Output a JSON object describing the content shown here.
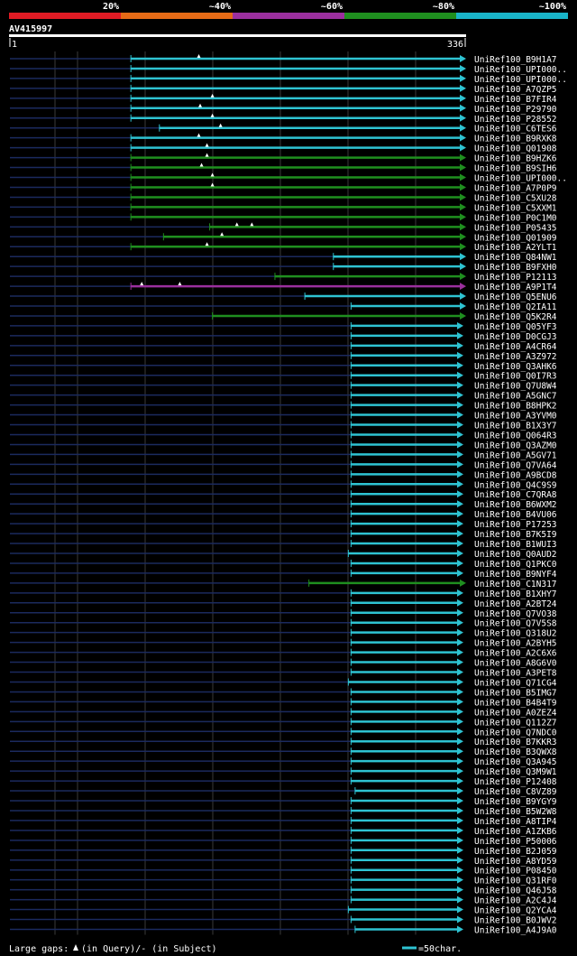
{
  "chart_data": {
    "type": "alignment-overview",
    "query": {
      "name": "AV415997",
      "start": 1,
      "end": 336
    },
    "identity_legend": [
      {
        "label": "20%",
        "color": "#e01b24"
      },
      {
        "label": "~40%",
        "color": "#e66b16"
      },
      {
        "label": "~60%",
        "color": "#9b2f9e"
      },
      {
        "label": "~80%",
        "color": "#1f8f1f"
      },
      {
        "label": "~100%",
        "color": "#19b4c8"
      }
    ],
    "footer": {
      "gaps_label": "Large gaps:",
      "query_label": "(in Query)/- (in Subject)",
      "scale_label": "=50char."
    },
    "hits": [
      {
        "name": "UniRef100_B9H1A7",
        "start": 90,
        "end": 336,
        "color": "cyan",
        "gaps": [
          140
        ]
      },
      {
        "name": "UniRef100_UPI000..",
        "start": 90,
        "end": 336,
        "color": "cyan",
        "gaps": []
      },
      {
        "name": "UniRef100_UPI000..",
        "start": 90,
        "end": 336,
        "color": "cyan",
        "gaps": []
      },
      {
        "name": "UniRef100_A7QZP5",
        "start": 90,
        "end": 336,
        "color": "cyan",
        "gaps": []
      },
      {
        "name": "UniRef100_B7FIR4",
        "start": 90,
        "end": 336,
        "color": "cyan",
        "gaps": [
          150
        ]
      },
      {
        "name": "UniRef100_P29790",
        "start": 90,
        "end": 336,
        "color": "cyan",
        "gaps": [
          141
        ]
      },
      {
        "name": "UniRef100_P28552",
        "start": 90,
        "end": 336,
        "color": "cyan",
        "gaps": [
          150
        ]
      },
      {
        "name": "UniRef100_C6TES6",
        "start": 111,
        "end": 336,
        "color": "cyan",
        "gaps": [
          156
        ]
      },
      {
        "name": "UniRef100_B9RXK8",
        "start": 90,
        "end": 336,
        "color": "cyan",
        "gaps": [
          140
        ]
      },
      {
        "name": "UniRef100_Q01908",
        "start": 90,
        "end": 336,
        "color": "cyan",
        "gaps": [
          146
        ]
      },
      {
        "name": "UniRef100_B9HZK6",
        "start": 90,
        "end": 336,
        "color": "green",
        "gaps": [
          146
        ]
      },
      {
        "name": "UniRef100_B9SIH6",
        "start": 90,
        "end": 336,
        "color": "green",
        "gaps": [
          142
        ]
      },
      {
        "name": "UniRef100_UPI000..",
        "start": 90,
        "end": 336,
        "color": "green",
        "gaps": [
          150
        ]
      },
      {
        "name": "UniRef100_A7P0P9",
        "start": 90,
        "end": 336,
        "color": "green",
        "gaps": [
          150
        ]
      },
      {
        "name": "UniRef100_C5XU28",
        "start": 90,
        "end": 336,
        "color": "green",
        "gaps": []
      },
      {
        "name": "UniRef100_C5XXM1",
        "start": 90,
        "end": 336,
        "color": "green",
        "gaps": []
      },
      {
        "name": "UniRef100_P0C1M0",
        "start": 90,
        "end": 336,
        "color": "green",
        "gaps": []
      },
      {
        "name": "UniRef100_P05435",
        "start": 148,
        "end": 336,
        "color": "green",
        "gaps": [
          168,
          179
        ]
      },
      {
        "name": "UniRef100_Q01909",
        "start": 114,
        "end": 336,
        "color": "green",
        "gaps": [
          157
        ]
      },
      {
        "name": "UniRef100_A2YLT1",
        "start": 90,
        "end": 336,
        "color": "green",
        "gaps": [
          146
        ]
      },
      {
        "name": "UniRef100_Q84NW1",
        "start": 239,
        "end": 336,
        "color": "cyan",
        "gaps": []
      },
      {
        "name": "UniRef100_B9FXH0",
        "start": 239,
        "end": 336,
        "color": "cyan",
        "gaps": []
      },
      {
        "name": "UniRef100_P12113",
        "start": 196,
        "end": 336,
        "color": "green",
        "gaps": []
      },
      {
        "name": "UniRef100_A9P1T4",
        "start": 90,
        "end": 336,
        "color": "purple",
        "gaps": [
          98,
          126
        ]
      },
      {
        "name": "UniRef100_Q5ENU6",
        "start": 218,
        "end": 336,
        "color": "cyan",
        "gaps": []
      },
      {
        "name": "UniRef100_Q2IA11",
        "start": 252,
        "end": 336,
        "color": "cyan",
        "gaps": []
      },
      {
        "name": "UniRef100_Q5K2R4",
        "start": 150,
        "end": 336,
        "color": "green",
        "gaps": []
      },
      {
        "name": "UniRef100_Q05YF3",
        "start": 252,
        "end": 334,
        "color": "cyan",
        "gaps": []
      },
      {
        "name": "UniRef100_D0CGJ3",
        "start": 252,
        "end": 334,
        "color": "cyan",
        "gaps": []
      },
      {
        "name": "UniRef100_A4CR64",
        "start": 252,
        "end": 334,
        "color": "cyan",
        "gaps": []
      },
      {
        "name": "UniRef100_A3Z972",
        "start": 252,
        "end": 334,
        "color": "cyan",
        "gaps": []
      },
      {
        "name": "UniRef100_Q3AHK6",
        "start": 252,
        "end": 334,
        "color": "cyan",
        "gaps": []
      },
      {
        "name": "UniRef100_Q0I7R3",
        "start": 252,
        "end": 334,
        "color": "cyan",
        "gaps": []
      },
      {
        "name": "UniRef100_Q7U8W4",
        "start": 252,
        "end": 334,
        "color": "cyan",
        "gaps": []
      },
      {
        "name": "UniRef100_A5GNC7",
        "start": 252,
        "end": 334,
        "color": "cyan",
        "gaps": []
      },
      {
        "name": "UniRef100_B8HPK2",
        "start": 252,
        "end": 334,
        "color": "cyan",
        "gaps": []
      },
      {
        "name": "UniRef100_A3YVM0",
        "start": 252,
        "end": 334,
        "color": "cyan",
        "gaps": []
      },
      {
        "name": "UniRef100_B1X3Y7",
        "start": 252,
        "end": 334,
        "color": "cyan",
        "gaps": []
      },
      {
        "name": "UniRef100_Q064R3",
        "start": 252,
        "end": 334,
        "color": "cyan",
        "gaps": []
      },
      {
        "name": "UniRef100_Q3AZM0",
        "start": 252,
        "end": 334,
        "color": "cyan",
        "gaps": []
      },
      {
        "name": "UniRef100_A5GV71",
        "start": 252,
        "end": 334,
        "color": "cyan",
        "gaps": []
      },
      {
        "name": "UniRef100_Q7VA64",
        "start": 252,
        "end": 334,
        "color": "cyan",
        "gaps": []
      },
      {
        "name": "UniRef100_A9BCD8",
        "start": 252,
        "end": 334,
        "color": "cyan",
        "gaps": []
      },
      {
        "name": "UniRef100_Q4C9S9",
        "start": 252,
        "end": 334,
        "color": "cyan",
        "gaps": []
      },
      {
        "name": "UniRef100_C7QRA8",
        "start": 252,
        "end": 334,
        "color": "cyan",
        "gaps": []
      },
      {
        "name": "UniRef100_B6WXM2",
        "start": 252,
        "end": 334,
        "color": "cyan",
        "gaps": []
      },
      {
        "name": "UniRef100_B4VU06",
        "start": 252,
        "end": 334,
        "color": "cyan",
        "gaps": []
      },
      {
        "name": "UniRef100_P17253",
        "start": 252,
        "end": 334,
        "color": "cyan",
        "gaps": []
      },
      {
        "name": "UniRef100_B7K5I9",
        "start": 252,
        "end": 334,
        "color": "cyan",
        "gaps": []
      },
      {
        "name": "UniRef100_B1WUI3",
        "start": 252,
        "end": 334,
        "color": "cyan",
        "gaps": []
      },
      {
        "name": "UniRef100_Q0AUD2",
        "start": 250,
        "end": 334,
        "color": "cyan",
        "gaps": []
      },
      {
        "name": "UniRef100_Q1PKC0",
        "start": 252,
        "end": 334,
        "color": "cyan",
        "gaps": []
      },
      {
        "name": "UniRef100_B9NYF4",
        "start": 252,
        "end": 334,
        "color": "cyan",
        "gaps": []
      },
      {
        "name": "UniRef100_C1N317",
        "start": 221,
        "end": 336,
        "color": "green",
        "gaps": []
      },
      {
        "name": "UniRef100_B1XHY7",
        "start": 252,
        "end": 334,
        "color": "cyan",
        "gaps": []
      },
      {
        "name": "UniRef100_A2BT24",
        "start": 252,
        "end": 334,
        "color": "cyan",
        "gaps": []
      },
      {
        "name": "UniRef100_Q7VO38",
        "start": 252,
        "end": 334,
        "color": "cyan",
        "gaps": []
      },
      {
        "name": "UniRef100_Q7V5S8",
        "start": 252,
        "end": 334,
        "color": "cyan",
        "gaps": []
      },
      {
        "name": "UniRef100_Q318U2",
        "start": 252,
        "end": 334,
        "color": "cyan",
        "gaps": []
      },
      {
        "name": "UniRef100_A2BYH5",
        "start": 252,
        "end": 334,
        "color": "cyan",
        "gaps": []
      },
      {
        "name": "UniRef100_A2C6X6",
        "start": 252,
        "end": 334,
        "color": "cyan",
        "gaps": []
      },
      {
        "name": "UniRef100_A8G6V0",
        "start": 252,
        "end": 334,
        "color": "cyan",
        "gaps": []
      },
      {
        "name": "UniRef100_A3PET8",
        "start": 252,
        "end": 334,
        "color": "cyan",
        "gaps": []
      },
      {
        "name": "UniRef100_Q71CG4",
        "start": 250,
        "end": 334,
        "color": "cyan",
        "gaps": []
      },
      {
        "name": "UniRef100_B5IMG7",
        "start": 252,
        "end": 334,
        "color": "cyan",
        "gaps": []
      },
      {
        "name": "UniRef100_B4B4T9",
        "start": 252,
        "end": 334,
        "color": "cyan",
        "gaps": []
      },
      {
        "name": "UniRef100_A0ZEZ4",
        "start": 252,
        "end": 334,
        "color": "cyan",
        "gaps": []
      },
      {
        "name": "UniRef100_Q112Z7",
        "start": 252,
        "end": 334,
        "color": "cyan",
        "gaps": []
      },
      {
        "name": "UniRef100_Q7NDC0",
        "start": 252,
        "end": 334,
        "color": "cyan",
        "gaps": []
      },
      {
        "name": "UniRef100_B7KKR3",
        "start": 252,
        "end": 334,
        "color": "cyan",
        "gaps": []
      },
      {
        "name": "UniRef100_B3QWX8",
        "start": 252,
        "end": 334,
        "color": "cyan",
        "gaps": []
      },
      {
        "name": "UniRef100_Q3A945",
        "start": 252,
        "end": 334,
        "color": "cyan",
        "gaps": []
      },
      {
        "name": "UniRef100_Q3M9W1",
        "start": 252,
        "end": 334,
        "color": "cyan",
        "gaps": []
      },
      {
        "name": "UniRef100_P12408",
        "start": 252,
        "end": 334,
        "color": "cyan",
        "gaps": []
      },
      {
        "name": "UniRef100_C8VZ89",
        "start": 255,
        "end": 334,
        "color": "cyan",
        "gaps": []
      },
      {
        "name": "UniRef100_B9YGY9",
        "start": 252,
        "end": 334,
        "color": "cyan",
        "gaps": []
      },
      {
        "name": "UniRef100_B5W2W8",
        "start": 252,
        "end": 334,
        "color": "cyan",
        "gaps": []
      },
      {
        "name": "UniRef100_A8TIP4",
        "start": 252,
        "end": 334,
        "color": "cyan",
        "gaps": []
      },
      {
        "name": "UniRef100_A1ZKB6",
        "start": 252,
        "end": 334,
        "color": "cyan",
        "gaps": []
      },
      {
        "name": "UniRef100_P50006",
        "start": 252,
        "end": 334,
        "color": "cyan",
        "gaps": []
      },
      {
        "name": "UniRef100_B2J059",
        "start": 252,
        "end": 334,
        "color": "cyan",
        "gaps": []
      },
      {
        "name": "UniRef100_A8YD59",
        "start": 252,
        "end": 334,
        "color": "cyan",
        "gaps": []
      },
      {
        "name": "UniRef100_P08450",
        "start": 252,
        "end": 334,
        "color": "cyan",
        "gaps": []
      },
      {
        "name": "UniRef100_Q31RF0",
        "start": 252,
        "end": 334,
        "color": "cyan",
        "gaps": []
      },
      {
        "name": "UniRef100_Q46J58",
        "start": 252,
        "end": 334,
        "color": "cyan",
        "gaps": []
      },
      {
        "name": "UniRef100_A2C4J4",
        "start": 252,
        "end": 334,
        "color": "cyan",
        "gaps": []
      },
      {
        "name": "UniRef100_Q2YCA4",
        "start": 250,
        "end": 334,
        "color": "cyan",
        "gaps": []
      },
      {
        "name": "UniRef100_B0JWV2",
        "start": 252,
        "end": 334,
        "color": "cyan",
        "gaps": []
      },
      {
        "name": "UniRef100_A4J9A0",
        "start": 255,
        "end": 334,
        "color": "cyan",
        "gaps": []
      }
    ]
  }
}
